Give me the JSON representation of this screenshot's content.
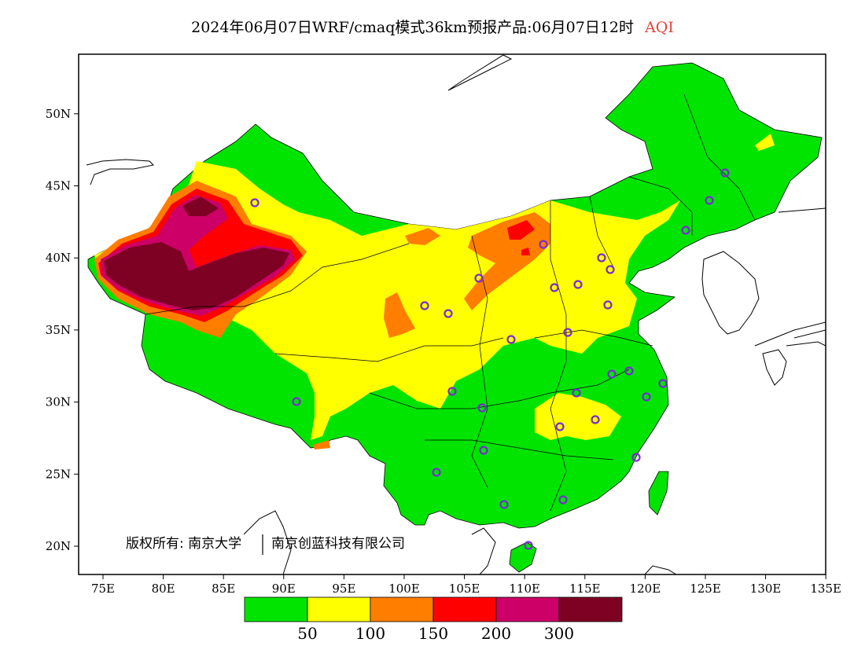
{
  "header": {
    "product_title": "2024年06月07日WRF/cmaq模式36km预报产品:06月07日12时",
    "variable": "AQI"
  },
  "map": {
    "lon_labels": [
      "75E",
      "80E",
      "85E",
      "90E",
      "95E",
      "100E",
      "105E",
      "110E",
      "115E",
      "120E",
      "125E",
      "130E",
      "135E"
    ],
    "lat_labels": [
      "20N",
      "25N",
      "30N",
      "35N",
      "40N",
      "45N",
      "50N"
    ],
    "copyright": "版权所有: 南京大学",
    "copyright_2": "南京创蓝科技有限公司",
    "land_color": "#00dc00",
    "ocean_color": "#ffffff"
  },
  "legend": {
    "colors": [
      "#00e400",
      "#ffff00",
      "#ff7e00",
      "#ff0000",
      "#cc0066",
      "#7e0023"
    ],
    "labels": [
      "50",
      "100",
      "150",
      "200",
      "300"
    ]
  }
}
